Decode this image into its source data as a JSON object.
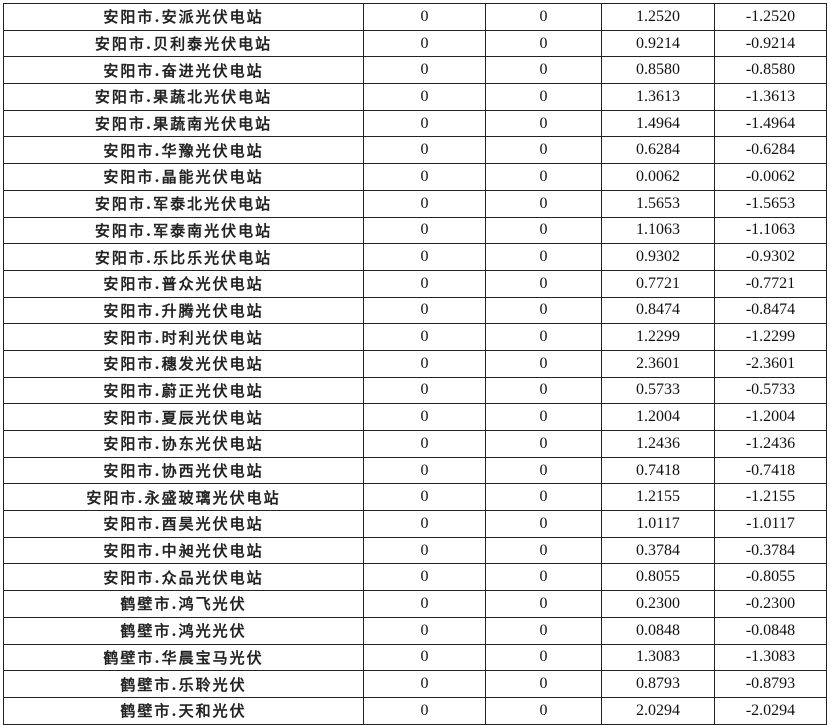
{
  "rows": [
    [
      "安阳市.安派光伏电站",
      "0",
      "0",
      "1.2520",
      "-1.2520"
    ],
    [
      "安阳市.贝利泰光伏电站",
      "0",
      "0",
      "0.9214",
      "-0.9214"
    ],
    [
      "安阳市.奋进光伏电站",
      "0",
      "0",
      "0.8580",
      "-0.8580"
    ],
    [
      "安阳市.果蔬北光伏电站",
      "0",
      "0",
      "1.3613",
      "-1.3613"
    ],
    [
      "安阳市.果蔬南光伏电站",
      "0",
      "0",
      "1.4964",
      "-1.4964"
    ],
    [
      "安阳市.华豫光伏电站",
      "0",
      "0",
      "0.6284",
      "-0.6284"
    ],
    [
      "安阳市.晶能光伏电站",
      "0",
      "0",
      "0.0062",
      "-0.0062"
    ],
    [
      "安阳市.军泰北光伏电站",
      "0",
      "0",
      "1.5653",
      "-1.5653"
    ],
    [
      "安阳市.军泰南光伏电站",
      "0",
      "0",
      "1.1063",
      "-1.1063"
    ],
    [
      "安阳市.乐比乐光伏电站",
      "0",
      "0",
      "0.9302",
      "-0.9302"
    ],
    [
      "安阳市.普众光伏电站",
      "0",
      "0",
      "0.7721",
      "-0.7721"
    ],
    [
      "安阳市.升腾光伏电站",
      "0",
      "0",
      "0.8474",
      "-0.8474"
    ],
    [
      "安阳市.时利光伏电站",
      "0",
      "0",
      "1.2299",
      "-1.2299"
    ],
    [
      "安阳市.穗发光伏电站",
      "0",
      "0",
      "2.3601",
      "-2.3601"
    ],
    [
      "安阳市.蔚正光伏电站",
      "0",
      "0",
      "0.5733",
      "-0.5733"
    ],
    [
      "安阳市.夏辰光伏电站",
      "0",
      "0",
      "1.2004",
      "-1.2004"
    ],
    [
      "安阳市.协东光伏电站",
      "0",
      "0",
      "1.2436",
      "-1.2436"
    ],
    [
      "安阳市.协西光伏电站",
      "0",
      "0",
      "0.7418",
      "-0.7418"
    ],
    [
      "安阳市.永盛玻璃光伏电站",
      "0",
      "0",
      "1.2155",
      "-1.2155"
    ],
    [
      "安阳市.酉昊光伏电站",
      "0",
      "0",
      "1.0117",
      "-1.0117"
    ],
    [
      "安阳市.中昶光伏电站",
      "0",
      "0",
      "0.3784",
      "-0.3784"
    ],
    [
      "安阳市.众品光伏电站",
      "0",
      "0",
      "0.8055",
      "-0.8055"
    ],
    [
      "鹤壁市.鸿飞光伏",
      "0",
      "0",
      "0.2300",
      "-0.2300"
    ],
    [
      "鹤壁市.鸿光光伏",
      "0",
      "0",
      "0.0848",
      "-0.0848"
    ],
    [
      "鹤壁市.华晨宝马光伏",
      "0",
      "0",
      "1.3083",
      "-1.3083"
    ],
    [
      "鹤壁市.乐聆光伏",
      "0",
      "0",
      "0.8793",
      "-0.8793"
    ],
    [
      "鹤壁市.天和光伏",
      "0",
      "0",
      "2.0294",
      "-2.0294"
    ]
  ]
}
